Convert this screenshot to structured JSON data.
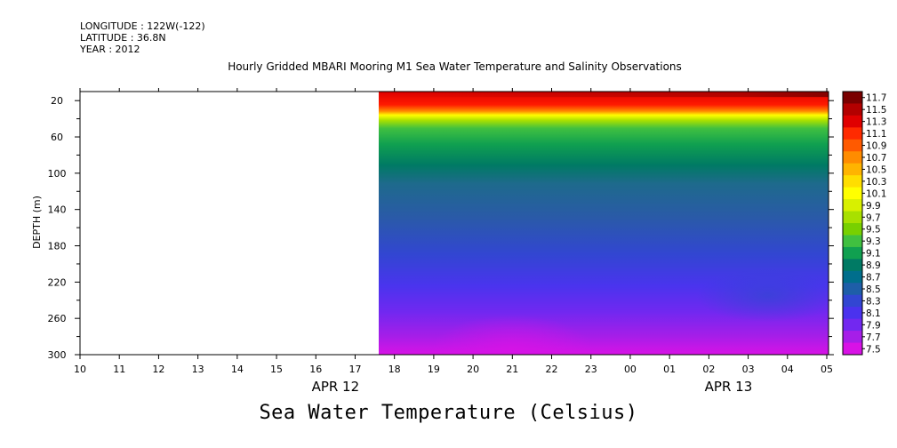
{
  "meta": {
    "longitude": "LONGITUDE : 122W(-122)",
    "latitude": "LATITUDE : 36.8N",
    "year": "YEAR : 2012"
  },
  "title": "Hourly Gridded MBARI Mooring M1 Sea Water Temperature and Salinity Observations",
  "bottom_title": "Sea Water Temperature (Celsius)",
  "chart_data": {
    "type": "heatmap",
    "title": "Hourly Gridded MBARI Mooring M1 Sea Water Temperature and Salinity Observations",
    "xlabel": "",
    "ylabel": "DEPTH (m)",
    "x_ticks": [
      "10",
      "11",
      "12",
      "13",
      "14",
      "15",
      "16",
      "17",
      "18",
      "19",
      "20",
      "21",
      "22",
      "23",
      "00",
      "01",
      "02",
      "03",
      "04",
      "05"
    ],
    "x_date_labels": [
      {
        "label": "APR 12",
        "at_hour_index": 6.5
      },
      {
        "label": "APR 13",
        "at_hour_index": 16.5
      }
    ],
    "y_ticks": [
      20,
      60,
      100,
      140,
      180,
      220,
      260,
      300
    ],
    "ylim": [
      10,
      300
    ],
    "y_inverted": true,
    "data_start_hour_index": 7.6,
    "colorbar": {
      "levels": [
        11.7,
        11.5,
        11.3,
        11.1,
        10.9,
        10.7,
        10.5,
        10.3,
        10.1,
        9.9,
        9.7,
        9.5,
        9.3,
        9.1,
        8.9,
        8.7,
        8.5,
        8.3,
        8.1,
        7.9,
        7.7,
        7.5
      ],
      "colors": [
        "#7a0000",
        "#b30000",
        "#e00000",
        "#ff2a00",
        "#ff5a00",
        "#ff8c00",
        "#ffb400",
        "#ffde00",
        "#ffff00",
        "#d8f000",
        "#a8e000",
        "#78d000",
        "#40c040",
        "#10a050",
        "#007a64",
        "#006e8c",
        "#1e5ea8",
        "#3246d2",
        "#4a32ee",
        "#7228f0",
        "#a61ee8",
        "#d812e6"
      ]
    },
    "series": [
      {
        "depth_profile_at": "18",
        "temps": [
          [
            10,
            11.5
          ],
          [
            20,
            11.4
          ],
          [
            30,
            10.2
          ],
          [
            40,
            9.3
          ],
          [
            60,
            8.9
          ],
          [
            100,
            8.4
          ],
          [
            140,
            8.2
          ],
          [
            180,
            8.0
          ],
          [
            220,
            7.9
          ],
          [
            260,
            7.7
          ],
          [
            300,
            7.6
          ]
        ]
      },
      {
        "depth_profile_at": "01",
        "temps": [
          [
            10,
            11.6
          ],
          [
            20,
            11.1
          ],
          [
            30,
            10.3
          ],
          [
            40,
            9.3
          ],
          [
            60,
            8.9
          ],
          [
            100,
            8.4
          ],
          [
            140,
            8.2
          ],
          [
            180,
            8.0
          ],
          [
            220,
            7.85
          ],
          [
            260,
            7.65
          ],
          [
            300,
            7.55
          ]
        ]
      }
    ]
  }
}
